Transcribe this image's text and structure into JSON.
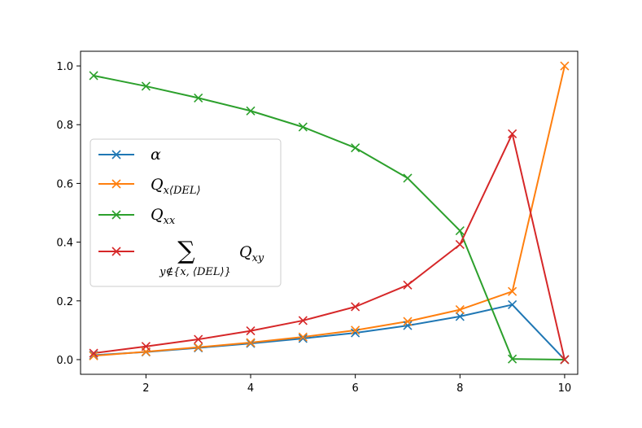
{
  "chart_data": {
    "type": "line",
    "title": "",
    "xlabel": "",
    "ylabel": "",
    "xlim": [
      0.75,
      10.25
    ],
    "ylim": [
      -0.05,
      1.05
    ],
    "xticks": [
      2,
      4,
      6,
      8,
      10
    ],
    "yticks": [
      0.0,
      0.2,
      0.4,
      0.6,
      0.8,
      1.0
    ],
    "xtick_labels": [
      "2",
      "4",
      "6",
      "8",
      "10"
    ],
    "ytick_labels": [
      "0.0",
      "0.2",
      "0.4",
      "0.6",
      "0.8",
      "1.0"
    ],
    "grid": false,
    "legend_position": "center-left",
    "marker": "x",
    "x": [
      1,
      2,
      3,
      4,
      5,
      6,
      7,
      8,
      9,
      10
    ],
    "series": [
      {
        "id": "alpha",
        "name": "α",
        "color": "#1f77b4",
        "values": [
          0.015,
          0.026,
          0.04,
          0.055,
          0.072,
          0.091,
          0.116,
          0.147,
          0.187,
          0.0
        ]
      },
      {
        "id": "q-x-del",
        "name": "Qx⟨DEL⟩",
        "legend_main": "Q",
        "legend_sub": "x⟨DEL⟩",
        "color": "#ff7f0e",
        "values": [
          0.013,
          0.027,
          0.042,
          0.058,
          0.077,
          0.1,
          0.13,
          0.17,
          0.232,
          1.0
        ]
      },
      {
        "id": "q-xx",
        "name": "Qxx",
        "legend_main": "Q",
        "legend_sub": "xx",
        "color": "#2ca02c",
        "values": [
          0.967,
          0.931,
          0.891,
          0.847,
          0.792,
          0.721,
          0.618,
          0.439,
          0.002,
          0.0
        ]
      },
      {
        "id": "sum-q-xy",
        "name": "Σ y∉{x,⟨DEL⟩} Qxy",
        "legend_sum_symbol": "∑",
        "legend_sum_sub": "y∉{x, ⟨DEL⟩}",
        "legend_main": "Q",
        "legend_sub": "xy",
        "color": "#d62728",
        "values": [
          0.022,
          0.045,
          0.069,
          0.098,
          0.133,
          0.18,
          0.254,
          0.392,
          0.769,
          0.0
        ]
      }
    ]
  }
}
